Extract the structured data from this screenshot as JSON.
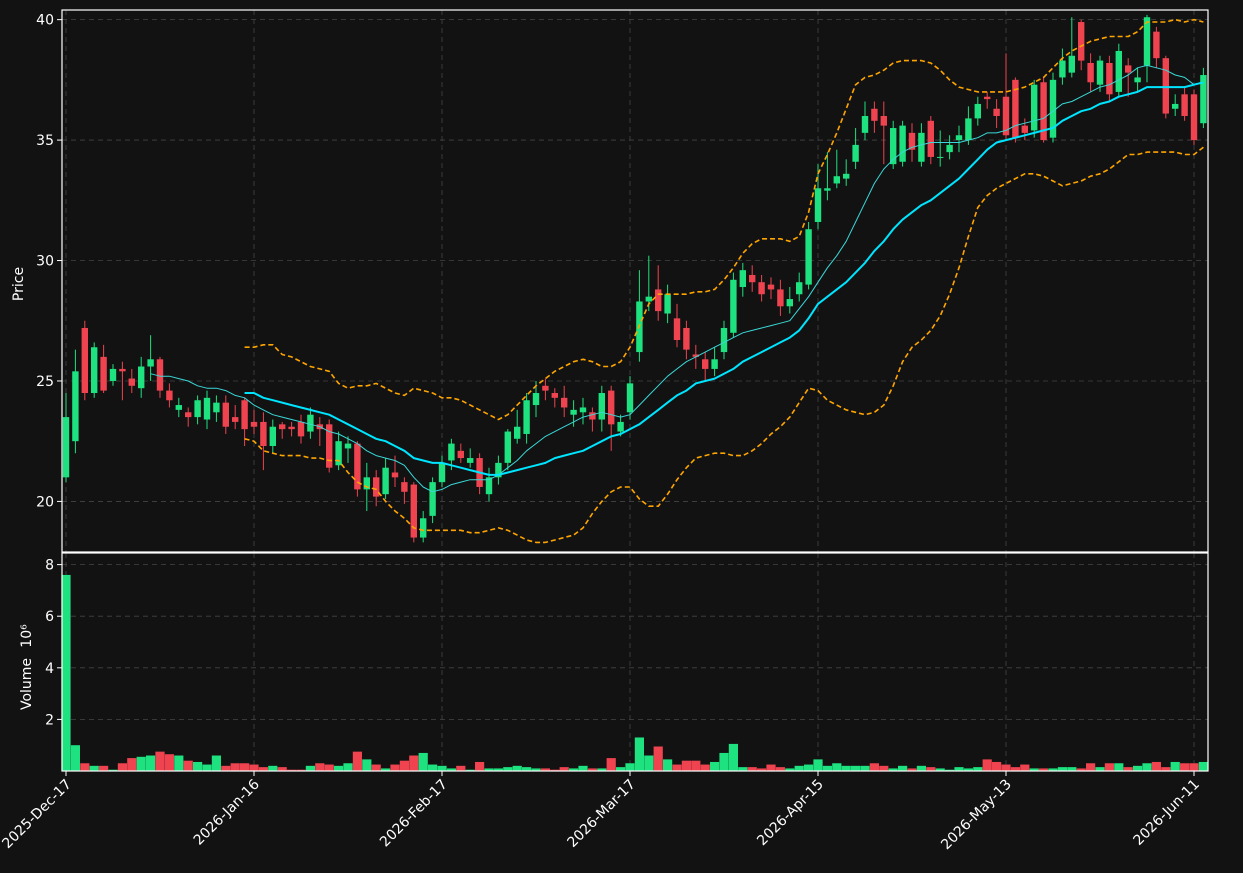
{
  "chart_data": {
    "type": "candlestick",
    "y_label": "Price",
    "volume_label": "Volume",
    "volume_multiplier": "10⁶",
    "up_color": "#1de27f",
    "down_color": "#ef4350",
    "grid": true,
    "categories": [
      "2025-Dec-17",
      null,
      null,
      null,
      null,
      null,
      null,
      null,
      null,
      null,
      null,
      null,
      null,
      null,
      null,
      null,
      null,
      null,
      null,
      null,
      "2026-Jan-16",
      null,
      null,
      null,
      null,
      null,
      null,
      null,
      null,
      null,
      null,
      null,
      null,
      null,
      null,
      null,
      null,
      null,
      null,
      null,
      "2026-Feb-17",
      null,
      null,
      null,
      null,
      null,
      null,
      null,
      null,
      null,
      null,
      null,
      null,
      null,
      null,
      null,
      null,
      null,
      null,
      null,
      "2026-Mar-17",
      null,
      null,
      null,
      null,
      null,
      null,
      null,
      null,
      null,
      null,
      null,
      null,
      null,
      null,
      null,
      null,
      null,
      null,
      null,
      "2026-Apr-15",
      null,
      null,
      null,
      null,
      null,
      null,
      null,
      null,
      null,
      null,
      null,
      null,
      null,
      null,
      null,
      null,
      null,
      null,
      null,
      "2026-May-13",
      null,
      null,
      null,
      null,
      null,
      null,
      null,
      null,
      null,
      null,
      null,
      null,
      null,
      null,
      null,
      null,
      null,
      null,
      null,
      "2026-Jun-11",
      null
    ],
    "open": [
      21,
      22.5,
      27.2,
      24.5,
      26,
      25,
      25.5,
      25.1,
      24.7,
      25.6,
      25.9,
      24.6,
      23.8,
      23.7,
      23.5,
      23.4,
      23.7,
      24.1,
      23.5,
      24.2,
      23.3,
      23.3,
      22.3,
      23.2,
      23.1,
      23.3,
      22.9,
      23.2,
      23.2,
      21.5,
      22.2,
      22.4,
      20.5,
      21.0,
      20.3,
      21.2,
      20.8,
      20.7,
      18.5,
      19.4,
      20.8,
      21.7,
      22.1,
      21.6,
      21.8,
      20.3,
      21.0,
      21.6,
      22.6,
      22.8,
      24.0,
      24.8,
      24.5,
      24.3,
      23.6,
      23.7,
      23.7,
      23.4,
      24.6,
      22.9,
      23.7,
      26.2,
      28.3,
      28.8,
      27.8,
      27.6,
      27.2,
      26.1,
      25.9,
      25.5,
      26.2,
      27.0,
      28.9,
      29.4,
      29.1,
      29.0,
      28.8,
      28.1,
      28.6,
      29.0,
      31.6,
      32.9,
      33.2,
      33.4,
      34.1,
      35.3,
      36.3,
      36.0,
      34.0,
      34.1,
      35.3,
      34.1,
      35.8,
      34.3,
      34.5,
      35.0,
      35.0,
      35.9,
      36.8,
      36.3,
      36.8,
      37.5,
      35.6,
      35.4,
      37.4,
      35.1,
      37.6,
      37.8,
      39.9,
      38.2,
      37.3,
      38.2,
      37.0,
      38.1,
      37.4,
      38.1,
      39.5,
      38.4,
      36.3,
      36.9,
      36.9,
      35.7
    ],
    "high": [
      24.5,
      26.3,
      27.5,
      26.6,
      26.5,
      25.7,
      25.8,
      25.5,
      26.0,
      26.9,
      26.0,
      24.9,
      24.3,
      23.9,
      24.4,
      24.6,
      24.4,
      24.4,
      24.0,
      24.3,
      23.8,
      23.7,
      23.4,
      23.3,
      23.3,
      23.6,
      23.9,
      23.5,
      23.4,
      22.9,
      22.7,
      22.5,
      21.6,
      21.3,
      21.8,
      21.9,
      21.0,
      20.8,
      19.6,
      21.0,
      21.9,
      22.6,
      22.4,
      22.2,
      22.0,
      21.4,
      21.9,
      23.0,
      23.8,
      24.5,
      25.0,
      25.1,
      24.7,
      24.8,
      24.2,
      24.3,
      23.9,
      24.8,
      24.8,
      23.6,
      25.2,
      29.6,
      30.2,
      29.8,
      29.0,
      28.2,
      27.5,
      26.5,
      26.2,
      26.4,
      27.5,
      29.5,
      29.9,
      29.8,
      29.4,
      29.3,
      29.2,
      28.9,
      29.5,
      31.6,
      34.0,
      34.5,
      34.6,
      34.2,
      35.5,
      36.6,
      36.6,
      36.6,
      35.8,
      35.8,
      35.7,
      35.7,
      36.0,
      35.4,
      35.2,
      35.6,
      36.4,
      36.8,
      37.0,
      36.7,
      38.6,
      37.6,
      35.9,
      37.5,
      37.6,
      37.8,
      38.8,
      40.1,
      40.0,
      38.6,
      38.5,
      38.5,
      39.0,
      38.4,
      38.0,
      40.2,
      39.7,
      38.5,
      36.9,
      37.2,
      37.1,
      38.0
    ],
    "low": [
      20.8,
      22.0,
      24.2,
      24.3,
      24.5,
      24.8,
      24.2,
      24.5,
      24.3,
      25.0,
      24.3,
      23.9,
      23.5,
      23.1,
      23.2,
      23.0,
      23.3,
      22.8,
      23.0,
      22.3,
      22.8,
      21.3,
      22.0,
      22.6,
      22.7,
      22.4,
      22.6,
      22.3,
      21.2,
      21.3,
      21.6,
      20.2,
      19.6,
      19.8,
      20.1,
      20.6,
      19.9,
      18.3,
      18.3,
      19.1,
      20.6,
      21.3,
      21.6,
      21.4,
      20.3,
      20.0,
      20.7,
      21.3,
      22.4,
      22.4,
      23.5,
      24.2,
      23.9,
      23.5,
      23.1,
      23.2,
      22.9,
      22.9,
      22.1,
      22.7,
      23.4,
      25.8,
      27.9,
      27.5,
      27.4,
      26.4,
      25.9,
      25.5,
      25.0,
      25.2,
      25.9,
      26.8,
      28.5,
      28.7,
      28.3,
      28.4,
      27.7,
      27.8,
      28.3,
      28.8,
      31.3,
      32.5,
      33.0,
      33.1,
      33.8,
      35.0,
      35.3,
      34.0,
      33.8,
      33.9,
      34.1,
      33.9,
      34.0,
      33.9,
      34.2,
      34.5,
      34.8,
      35.6,
      36.3,
      35.5,
      35.0,
      34.9,
      35.0,
      35.1,
      34.9,
      34.9,
      37.3,
      37.6,
      37.9,
      37.0,
      37.0,
      36.6,
      36.8,
      36.8,
      37.0,
      37.4,
      38.0,
      35.9,
      36.0,
      35.8,
      34.8,
      35.5
    ],
    "close": [
      23.5,
      25.4,
      24.5,
      26.4,
      24.6,
      25.5,
      25.4,
      24.8,
      25.6,
      25.9,
      24.6,
      24.2,
      24.0,
      23.5,
      24.2,
      24.3,
      24.1,
      23.1,
      23.3,
      23.0,
      23.1,
      22.3,
      23.1,
      23.0,
      23.0,
      22.7,
      23.6,
      23.0,
      21.4,
      22.5,
      22.4,
      20.5,
      21.0,
      20.2,
      21.4,
      21.0,
      20.4,
      18.5,
      19.3,
      20.8,
      21.6,
      22.4,
      21.8,
      21.8,
      20.6,
      21.0,
      21.6,
      22.9,
      23.1,
      24.2,
      24.5,
      24.6,
      24.3,
      23.9,
      23.8,
      23.9,
      23.4,
      24.5,
      23.2,
      23.3,
      24.9,
      28.3,
      28.5,
      27.9,
      28.6,
      26.7,
      26.3,
      26.0,
      25.5,
      25.9,
      27.2,
      29.2,
      29.6,
      29.1,
      28.6,
      28.8,
      28.1,
      28.4,
      29.1,
      31.3,
      33.0,
      33.0,
      33.5,
      33.6,
      34.8,
      36.0,
      35.8,
      35.6,
      35.5,
      35.6,
      34.6,
      35.3,
      34.3,
      34.3,
      34.8,
      35.2,
      35.9,
      36.5,
      36.7,
      36.0,
      35.2,
      35.1,
      35.3,
      37.3,
      35.0,
      37.5,
      38.3,
      38.5,
      38.3,
      37.4,
      38.3,
      36.9,
      38.7,
      37.8,
      37.6,
      40.1,
      38.4,
      36.1,
      36.5,
      36.0,
      35.0,
      37.7
    ],
    "volume": [
      7.6,
      1.0,
      0.3,
      0.2,
      0.2,
      0.05,
      0.3,
      0.5,
      0.55,
      0.6,
      0.75,
      0.65,
      0.6,
      0.4,
      0.35,
      0.25,
      0.6,
      0.2,
      0.3,
      0.3,
      0.25,
      0.15,
      0.2,
      0.15,
      0.05,
      0.05,
      0.2,
      0.3,
      0.25,
      0.2,
      0.3,
      0.75,
      0.45,
      0.25,
      0.1,
      0.25,
      0.4,
      0.6,
      0.7,
      0.25,
      0.2,
      0.1,
      0.2,
      0.05,
      0.35,
      0.1,
      0.1,
      0.15,
      0.2,
      0.15,
      0.1,
      0.1,
      0.05,
      0.15,
      0.1,
      0.2,
      0.1,
      0.1,
      0.5,
      0.15,
      0.3,
      1.3,
      0.6,
      0.95,
      0.45,
      0.25,
      0.4,
      0.4,
      0.25,
      0.35,
      0.7,
      1.05,
      0.15,
      0.15,
      0.1,
      0.25,
      0.15,
      0.1,
      0.2,
      0.25,
      0.45,
      0.2,
      0.3,
      0.2,
      0.2,
      0.2,
      0.3,
      0.2,
      0.1,
      0.2,
      0.1,
      0.2,
      0.15,
      0.1,
      0.05,
      0.15,
      0.1,
      0.15,
      0.45,
      0.35,
      0.25,
      0.15,
      0.25,
      0.1,
      0.1,
      0.1,
      0.15,
      0.15,
      0.1,
      0.3,
      0.15,
      0.3,
      0.3,
      0.15,
      0.2,
      0.3,
      0.35,
      0.15,
      0.35,
      0.3,
      0.3,
      0.35
    ],
    "overlays": [
      {
        "color": "#3ad8d8",
        "style": "thin",
        "values": [
          null,
          null,
          null,
          null,
          null,
          null,
          null,
          null,
          null,
          25.3,
          25.2,
          25.2,
          25.1,
          25.0,
          24.8,
          24.7,
          24.7,
          24.6,
          24.4,
          24.3,
          24.0,
          23.8,
          23.6,
          23.5,
          23.4,
          23.3,
          23.2,
          23.1,
          22.9,
          22.8,
          22.6,
          22.4,
          22.1,
          21.9,
          21.8,
          21.7,
          21.5,
          21.0,
          20.6,
          20.4,
          20.5,
          20.7,
          20.8,
          20.9,
          20.9,
          20.9,
          21.1,
          21.4,
          21.7,
          22.1,
          22.4,
          22.7,
          22.9,
          23.1,
          23.3,
          23.5,
          23.6,
          23.7,
          23.6,
          23.5,
          23.6,
          24.0,
          24.4,
          24.8,
          25.2,
          25.5,
          25.8,
          26.0,
          26.2,
          26.4,
          26.6,
          26.8,
          27.0,
          27.1,
          27.2,
          27.3,
          27.4,
          27.5,
          28.0,
          28.5,
          29.1,
          29.7,
          30.2,
          30.8,
          31.6,
          32.4,
          33.2,
          33.8,
          34.2,
          34.5,
          34.7,
          34.8,
          34.9,
          34.9,
          34.9,
          34.9,
          35.0,
          35.1,
          35.3,
          35.3,
          35.4,
          35.6,
          35.7,
          35.8,
          35.9,
          36.2,
          36.5,
          36.6,
          36.8,
          37.0,
          37.2,
          37.3,
          37.5,
          37.7,
          38.0,
          38.1,
          38.0,
          37.9,
          37.7,
          37.6,
          37.3,
          37.4
        ]
      },
      {
        "color": "#00e5ff",
        "style": "bold",
        "values": [
          null,
          null,
          null,
          null,
          null,
          null,
          null,
          null,
          null,
          null,
          null,
          null,
          null,
          null,
          null,
          null,
          null,
          null,
          null,
          24.5,
          24.5,
          24.3,
          24.2,
          24.1,
          24.0,
          23.9,
          23.8,
          23.7,
          23.6,
          23.4,
          23.2,
          23.0,
          22.8,
          22.6,
          22.5,
          22.3,
          22.1,
          21.8,
          21.7,
          21.6,
          21.6,
          21.5,
          21.4,
          21.3,
          21.2,
          21.1,
          21.1,
          21.2,
          21.3,
          21.4,
          21.5,
          21.6,
          21.8,
          21.9,
          22.0,
          22.1,
          22.3,
          22.5,
          22.7,
          22.8,
          23.0,
          23.2,
          23.5,
          23.8,
          24.1,
          24.4,
          24.6,
          24.9,
          25.0,
          25.1,
          25.3,
          25.5,
          25.8,
          26.0,
          26.2,
          26.4,
          26.6,
          26.8,
          27.1,
          27.6,
          28.2,
          28.5,
          28.8,
          29.1,
          29.5,
          29.9,
          30.4,
          30.8,
          31.3,
          31.7,
          32.0,
          32.3,
          32.5,
          32.8,
          33.1,
          33.4,
          33.8,
          34.2,
          34.6,
          34.9,
          35.0,
          35.1,
          35.2,
          35.3,
          35.4,
          35.5,
          35.8,
          36.0,
          36.2,
          36.3,
          36.5,
          36.6,
          36.8,
          36.9,
          37.0,
          37.2,
          37.2,
          37.2,
          37.2,
          37.2,
          37.3,
          37.4
        ]
      },
      {
        "color": "#ffa500",
        "style": "dashed",
        "values": [
          null,
          null,
          null,
          null,
          null,
          null,
          null,
          null,
          null,
          null,
          null,
          null,
          null,
          null,
          null,
          null,
          null,
          null,
          null,
          26.4,
          26.4,
          26.5,
          26.5,
          26.1,
          26.0,
          25.8,
          25.6,
          25.5,
          25.4,
          24.9,
          24.7,
          24.8,
          24.8,
          24.9,
          24.7,
          24.5,
          24.4,
          24.7,
          24.6,
          24.5,
          24.3,
          24.3,
          24.2,
          24.0,
          23.8,
          23.6,
          23.4,
          23.6,
          24.0,
          24.4,
          24.8,
          25.1,
          25.4,
          25.6,
          25.8,
          25.9,
          25.8,
          25.6,
          25.6,
          25.8,
          26.4,
          27.3,
          28.2,
          28.6,
          28.6,
          28.6,
          28.6,
          28.7,
          28.7,
          28.8,
          29.2,
          29.7,
          30.3,
          30.7,
          30.9,
          30.9,
          30.9,
          30.8,
          31.0,
          32.0,
          33.6,
          34.4,
          35.3,
          36.3,
          37.3,
          37.6,
          37.7,
          37.9,
          38.2,
          38.3,
          38.3,
          38.3,
          38.2,
          37.9,
          37.5,
          37.2,
          37.1,
          37.0,
          37.0,
          37.0,
          37.0,
          37.1,
          37.2,
          37.4,
          37.6,
          38.0,
          38.4,
          38.7,
          38.9,
          39.1,
          39.2,
          39.3,
          39.3,
          39.3,
          39.5,
          39.9,
          39.9,
          39.9,
          40.0,
          39.9,
          40.0,
          39.9
        ]
      },
      {
        "color": "#ffa500",
        "style": "dashed",
        "values": [
          null,
          null,
          null,
          null,
          null,
          null,
          null,
          null,
          null,
          null,
          null,
          null,
          null,
          null,
          null,
          null,
          null,
          null,
          null,
          22.6,
          22.5,
          22.1,
          22.0,
          21.9,
          21.9,
          21.9,
          21.8,
          21.8,
          21.7,
          21.7,
          21.2,
          20.8,
          20.6,
          20.5,
          20.0,
          19.6,
          19.3,
          18.9,
          18.8,
          18.8,
          18.8,
          18.8,
          18.8,
          18.7,
          18.7,
          18.8,
          18.9,
          18.8,
          18.6,
          18.4,
          18.3,
          18.3,
          18.4,
          18.5,
          18.6,
          18.9,
          19.5,
          20.0,
          20.4,
          20.6,
          20.6,
          20.1,
          19.8,
          19.8,
          20.3,
          20.9,
          21.4,
          21.8,
          21.9,
          22.0,
          22.0,
          21.9,
          21.9,
          22.1,
          22.4,
          22.8,
          23.1,
          23.5,
          24.1,
          24.7,
          24.6,
          24.2,
          24.0,
          23.8,
          23.7,
          23.6,
          23.7,
          24.0,
          24.8,
          25.8,
          26.4,
          26.7,
          27.1,
          27.7,
          28.6,
          29.7,
          31.0,
          32.2,
          32.7,
          33.0,
          33.2,
          33.4,
          33.6,
          33.6,
          33.5,
          33.3,
          33.1,
          33.2,
          33.3,
          33.5,
          33.6,
          33.8,
          34.1,
          34.4,
          34.4,
          34.5,
          34.5,
          34.5,
          34.5,
          34.4,
          34.4,
          34.7
        ]
      }
    ],
    "ylim": [
      17.9,
      40.4
    ],
    "yticks": [
      20,
      25,
      30,
      35,
      40
    ],
    "volume_ylim": [
      0,
      8.45
    ],
    "volume_yticks": [
      2,
      4,
      6,
      8
    ]
  }
}
